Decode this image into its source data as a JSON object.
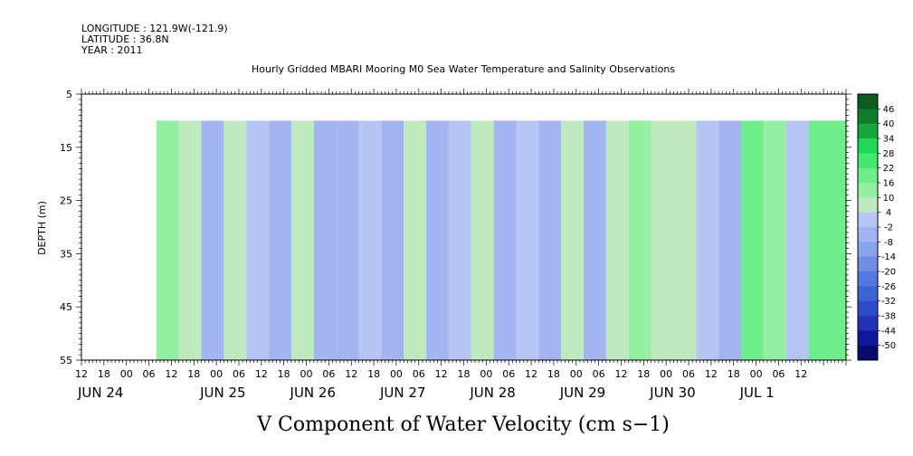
{
  "header": {
    "longitude": "LONGITUDE : 121.9W(-121.9)",
    "latitude": "LATITUDE : 36.8N",
    "year": "YEAR : 2011",
    "title": "Hourly Gridded MBARI Mooring M0 Sea Water Temperature and Salinity Observations"
  },
  "chart_data": {
    "type": "heatmap",
    "title": "Hourly Gridded MBARI Mooring M0 Sea Water Temperature and Salinity Observations",
    "xlabel": "",
    "ylabel": "DEPTH (m)",
    "bottom_title": "V Component of Water Velocity (cm s−1)",
    "y_range": [
      5,
      55
    ],
    "y_ticks": [
      "5",
      "15",
      "25",
      "35",
      "45",
      "55"
    ],
    "hour_ticks": [
      "12",
      "18",
      "00",
      "06",
      "12",
      "18",
      "00",
      "06",
      "12",
      "18",
      "00",
      "06",
      "12",
      "18",
      "00",
      "06",
      "12",
      "18",
      "00",
      "06",
      "12",
      "18",
      "00",
      "06",
      "12",
      "18",
      "00",
      "06",
      "12",
      "18",
      "00",
      "06",
      "12"
    ],
    "date_labels": [
      "JUN 24",
      "JUN 25",
      "JUN 26",
      "JUN 27",
      "JUN 28",
      "JUN 29",
      "JUN 30",
      "JUL  1"
    ],
    "data_start_hour": 20,
    "data_end_hour": 204,
    "data_top_depth": 10,
    "colorbar": {
      "levels": [
        -50,
        -44,
        -38,
        -32,
        -26,
        -20,
        -14,
        -8,
        -2,
        4,
        10,
        16,
        22,
        28,
        34,
        40,
        46
      ],
      "labels": [
        "46",
        "40",
        "34",
        "28",
        "22",
        "16",
        "10",
        "4",
        "-2",
        "-8",
        "-14",
        "-20",
        "-26",
        "-32",
        "-38",
        "-44",
        "-50"
      ],
      "colors": [
        "#0b0b6e",
        "#101a98",
        "#1f33b4",
        "#2e4cc8",
        "#3e63d6",
        "#5577de",
        "#6f8ee4",
        "#8aa4ea",
        "#a3b5f0",
        "#b6c6f4",
        "#bfe9bf",
        "#93efa2",
        "#6fec8b",
        "#45e86f",
        "#20d856",
        "#17a83d",
        "#0e7d2c",
        "#0b5a1f"
      ]
    },
    "columns": [
      {
        "hour": 20,
        "v": 10
      },
      {
        "hour": 26,
        "v": 7
      },
      {
        "hour": 32,
        "v": -3
      },
      {
        "hour": 38,
        "v": 6
      },
      {
        "hour": 44,
        "v": 2
      },
      {
        "hour": 50,
        "v": -6
      },
      {
        "hour": 56,
        "v": 5
      },
      {
        "hour": 62,
        "v": -4
      },
      {
        "hour": 68,
        "v": -8
      },
      {
        "hour": 74,
        "v": 1
      },
      {
        "hour": 80,
        "v": -7
      },
      {
        "hour": 86,
        "v": 6
      },
      {
        "hour": 92,
        "v": -5
      },
      {
        "hour": 98,
        "v": 3
      },
      {
        "hour": 104,
        "v": 9
      },
      {
        "hour": 110,
        "v": -6
      },
      {
        "hour": 116,
        "v": 2
      },
      {
        "hour": 122,
        "v": -3
      },
      {
        "hour": 128,
        "v": 8
      },
      {
        "hour": 134,
        "v": -5
      },
      {
        "hour": 140,
        "v": 4
      },
      {
        "hour": 146,
        "v": 12
      },
      {
        "hour": 152,
        "v": 6
      },
      {
        "hour": 158,
        "v": 9
      },
      {
        "hour": 164,
        "v": 3
      },
      {
        "hour": 170,
        "v": -4
      },
      {
        "hour": 176,
        "v": 18
      },
      {
        "hour": 182,
        "v": 12
      },
      {
        "hour": 188,
        "v": 0
      },
      {
        "hour": 194,
        "v": 16
      },
      {
        "hour": 200,
        "v": 21
      },
      {
        "hour": 204,
        "v": 6
      }
    ]
  }
}
